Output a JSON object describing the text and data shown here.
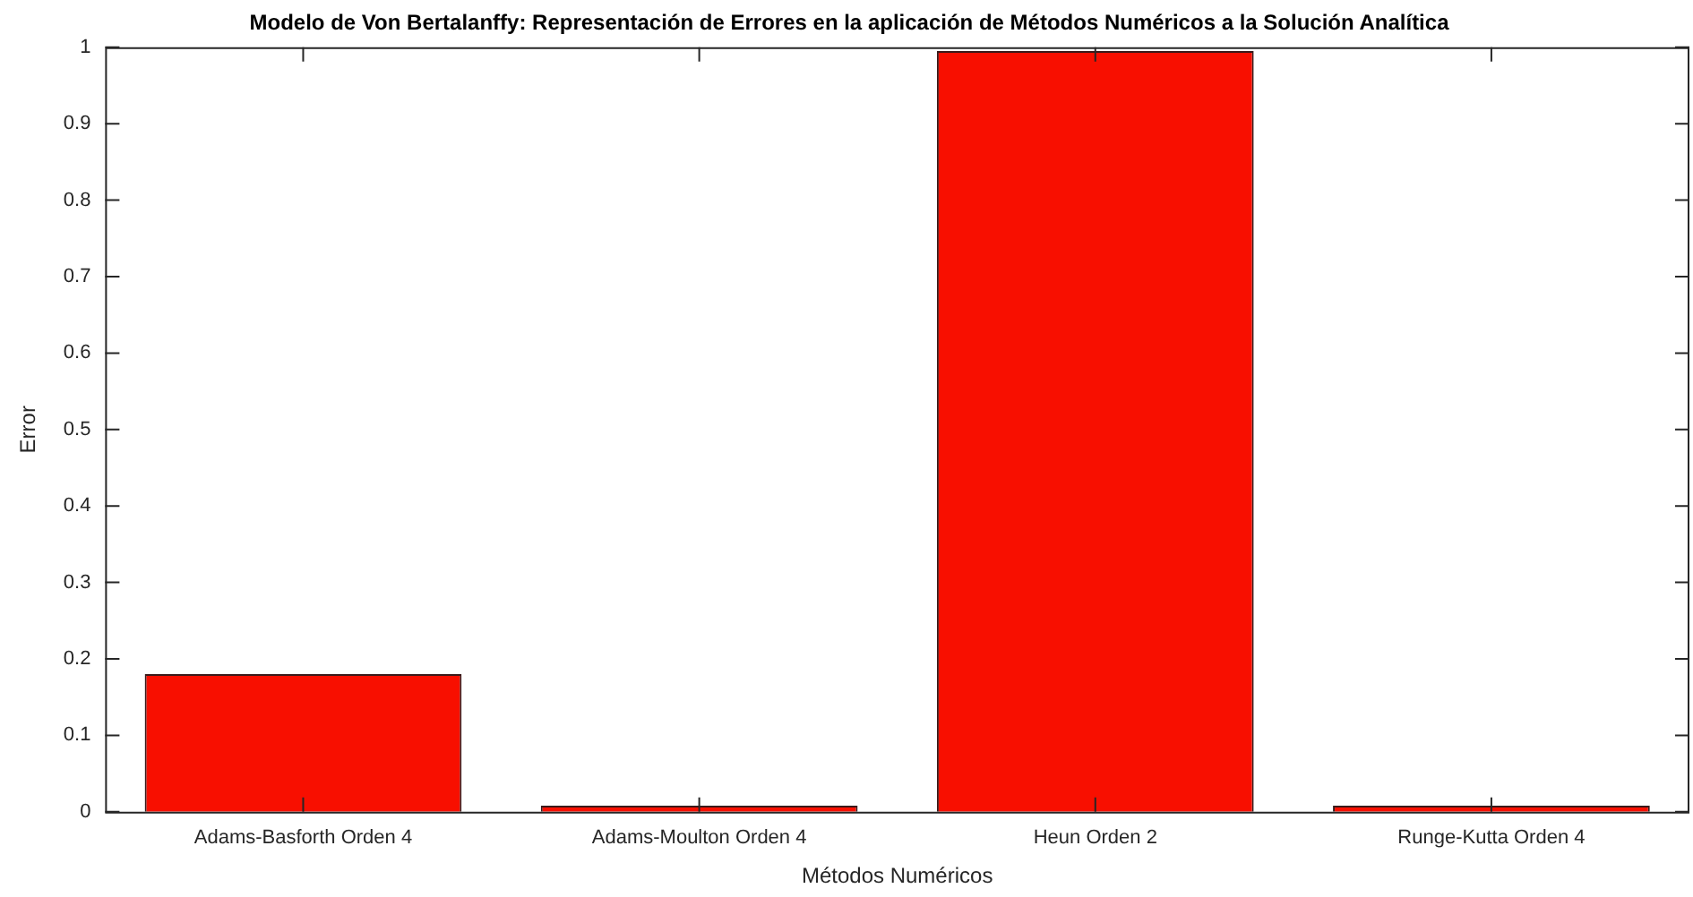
{
  "chart_data": {
    "type": "bar",
    "title": "Modelo de Von Bertalanffy: Representación de Errores en la aplicación de Métodos Numéricos a la Solución Analítica",
    "xlabel": "Métodos Numéricos",
    "ylabel": "Error",
    "categories": [
      "Adams-Basforth Orden 4",
      "Adams-Moulton Orden 4",
      "Heun Orden 2",
      "Runge-Kutta Orden 4"
    ],
    "values": [
      0.18,
      0.008,
      0.995,
      0.008
    ],
    "color": "#f80f00",
    "ylim": [
      0,
      1
    ],
    "yticks": [
      0,
      0.1,
      0.2,
      0.3,
      0.4,
      0.5,
      0.6,
      0.7,
      0.8,
      0.9,
      1
    ],
    "grid": false,
    "legend": false
  }
}
